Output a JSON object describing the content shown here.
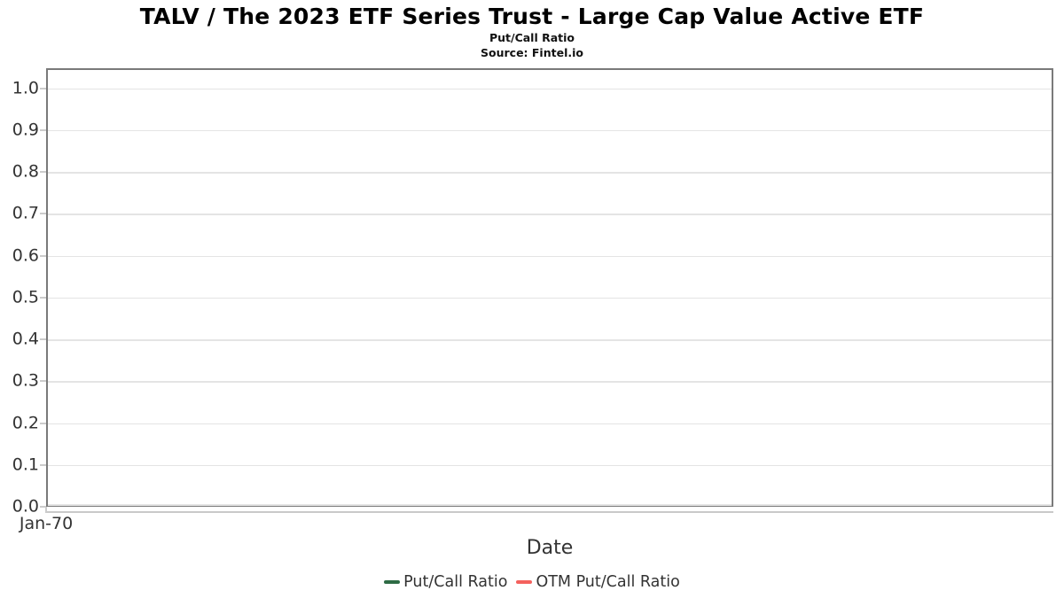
{
  "chart_data": {
    "type": "line",
    "title": "TALV / The 2023 ETF Series Trust - Large Cap Value Active ETF",
    "subtitle": "Put/Call Ratio",
    "source": "Source: Fintel.io",
    "xlabel": "Date",
    "x_tick_labels": [
      "Jan-70"
    ],
    "y_tick_labels": [
      "1.0",
      "0.9",
      "0.8",
      "0.7",
      "0.6",
      "0.5",
      "0.4",
      "0.3",
      "0.2",
      "0.1",
      "0.0"
    ],
    "ylim": [
      0,
      1.048
    ],
    "grid": true,
    "legend_position": "bottom-center",
    "series": [
      {
        "name": "Put/Call Ratio",
        "color": "#2e6b44",
        "x": [],
        "values": []
      },
      {
        "name": "OTM Put/Call Ratio",
        "color": "#f4615d",
        "x": [],
        "values": []
      }
    ],
    "colors": {
      "plot_border": "#7a7a7a",
      "gridline": "#e4e4e4",
      "tick_mark": "#cccccc",
      "axis_line": "#c9c9c9",
      "axis_text": "#333333",
      "title_text": "#000000"
    }
  }
}
